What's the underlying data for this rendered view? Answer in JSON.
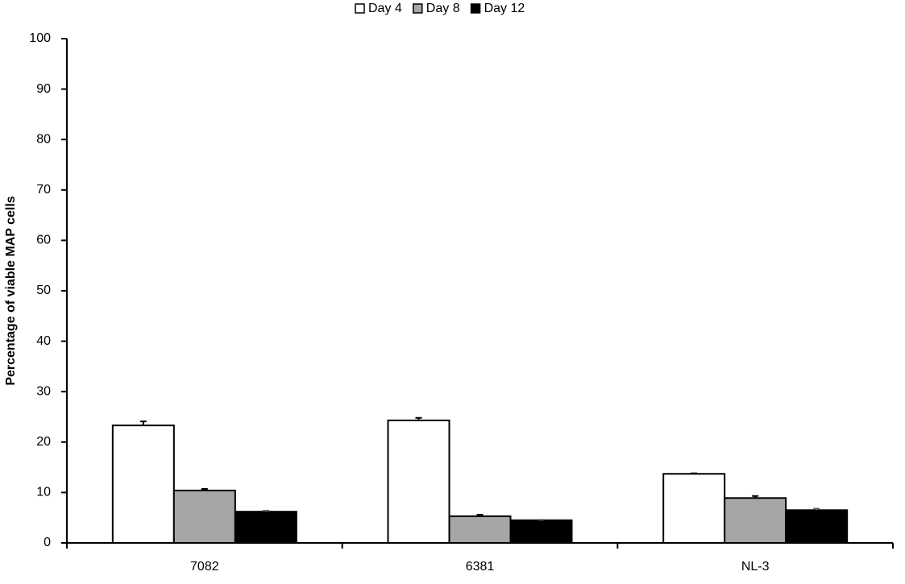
{
  "chart_data": {
    "type": "bar",
    "y_label": "Percentage of viable MAP cells",
    "categories": [
      "7082",
      "6381",
      "NL-3"
    ],
    "series": [
      {
        "name": "Day 4",
        "color": "#ffffff",
        "values": [
          23.3,
          24.3,
          13.7
        ],
        "errors": [
          0.8,
          0.5,
          0.1
        ]
      },
      {
        "name": "Day 8",
        "color": "#a6a6a6",
        "values": [
          10.4,
          5.3,
          8.9
        ],
        "errors": [
          0.3,
          0.3,
          0.4
        ]
      },
      {
        "name": "Day 12",
        "color": "#000000",
        "values": [
          6.2,
          4.5,
          6.5
        ],
        "errors": [
          0.2,
          0.1,
          0.3
        ]
      }
    ],
    "ylim": [
      0,
      100
    ],
    "yticks": [
      0,
      10,
      20,
      30,
      40,
      50,
      60,
      70,
      80,
      90,
      100
    ],
    "grid": false,
    "legend": "top"
  }
}
